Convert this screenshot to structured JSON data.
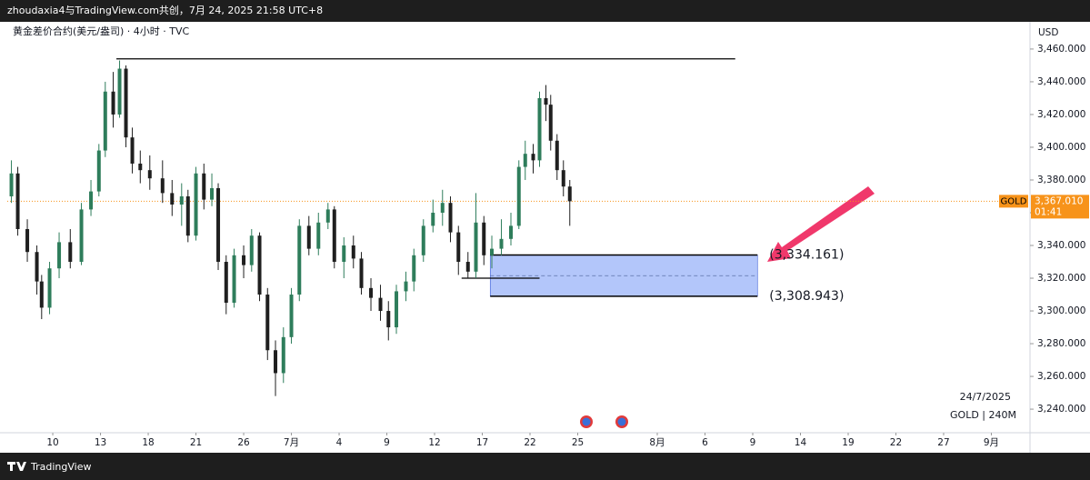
{
  "header": {
    "text": "zhoudaxia4与TradingView.com共创，7月 24, 2025 21:58 UTC+8"
  },
  "chart_data": {
    "type": "candlestick",
    "title": "黄金差价合约(美元/盎司) · 4小时 · TVC",
    "currency": "USD",
    "up_color": "#2e7d5b",
    "down_color": "#1f1f1f",
    "x": [
      -2.6,
      -2.2,
      -1.6,
      -1.0,
      -0.7,
      -0.2,
      0.4,
      1.1,
      1.8,
      2.4,
      2.9,
      3.3,
      3.8,
      4.2,
      4.6,
      5.0,
      5.5,
      6.1,
      6.9,
      7.5,
      8.1,
      8.5,
      9.0,
      9.5,
      10.0,
      10.4,
      10.9,
      11.4,
      12.0,
      12.5,
      13.0,
      13.5,
      14.0,
      14.5,
      15.0,
      15.5,
      16.1,
      16.7,
      17.3,
      17.7,
      18.3,
      18.9,
      19.4,
      20.0,
      20.6,
      21.1,
      21.6,
      22.2,
      22.7,
      23.3,
      23.9,
      24.5,
      25.0,
      25.5,
      26.1,
      26.6,
      27.1,
      27.6,
      28.2,
      28.8,
      29.3,
      29.7,
      30.2,
      30.6,
      31.0,
      31.3,
      31.7,
      32.1,
      32.5
    ],
    "open": [
      3370,
      3384,
      3350,
      3336,
      3318,
      3302,
      3326,
      3342,
      3330,
      3362,
      3373,
      3398,
      3434,
      3420,
      3448,
      3406,
      3390,
      3386,
      3381,
      3372,
      3365,
      3370,
      3346,
      3384,
      3368,
      3375,
      3330,
      3305,
      3334,
      3328,
      3346,
      3310,
      3276,
      3262,
      3284,
      3310,
      3352,
      3338,
      3354,
      3362,
      3330,
      3340,
      3332,
      3314,
      3308,
      3300,
      3290,
      3312,
      3318,
      3334,
      3352,
      3360,
      3366,
      3348,
      3330,
      3324,
      3354,
      3334,
      3338,
      3344,
      3352,
      3388,
      3396,
      3392,
      3430,
      3426,
      3404,
      3386,
      3376
    ],
    "high": [
      3392,
      3388,
      3356,
      3340,
      3322,
      3330,
      3348,
      3350,
      3366,
      3380,
      3402,
      3440,
      3446,
      3453,
      3450,
      3412,
      3398,
      3395,
      3392,
      3380,
      3378,
      3374,
      3388,
      3390,
      3384,
      3378,
      3334,
      3338,
      3340,
      3350,
      3348,
      3314,
      3282,
      3290,
      3314,
      3356,
      3358,
      3360,
      3366,
      3364,
      3345,
      3346,
      3336,
      3320,
      3316,
      3306,
      3316,
      3324,
      3338,
      3356,
      3368,
      3374,
      3370,
      3352,
      3336,
      3372,
      3358,
      3346,
      3356,
      3360,
      3392,
      3404,
      3402,
      3434,
      3438,
      3432,
      3408,
      3392,
      3380
    ],
    "low": [
      3366,
      3346,
      3330,
      3310,
      3295,
      3298,
      3320,
      3326,
      3328,
      3358,
      3370,
      3394,
      3412,
      3418,
      3400,
      3384,
      3378,
      3374,
      3366,
      3358,
      3352,
      3342,
      3343,
      3362,
      3364,
      3325,
      3298,
      3302,
      3320,
      3324,
      3306,
      3270,
      3248,
      3256,
      3280,
      3306,
      3334,
      3334,
      3350,
      3326,
      3320,
      3326,
      3310,
      3300,
      3294,
      3282,
      3286,
      3306,
      3312,
      3330,
      3348,
      3352,
      3342,
      3322,
      3320,
      3320,
      3328,
      3326,
      3334,
      3340,
      3350,
      3380,
      3384,
      3388,
      3416,
      3398,
      3380,
      3370,
      3352
    ],
    "close": [
      3384,
      3350,
      3336,
      3318,
      3302,
      3326,
      3342,
      3330,
      3362,
      3373,
      3398,
      3434,
      3420,
      3448,
      3406,
      3390,
      3386,
      3381,
      3372,
      3365,
      3370,
      3346,
      3384,
      3368,
      3375,
      3330,
      3305,
      3334,
      3328,
      3346,
      3310,
      3276,
      3262,
      3284,
      3310,
      3352,
      3338,
      3354,
      3362,
      3330,
      3340,
      3332,
      3314,
      3308,
      3300,
      3290,
      3312,
      3318,
      3334,
      3352,
      3360,
      3366,
      3348,
      3330,
      3324,
      3354,
      3334,
      3338,
      3344,
      3352,
      3388,
      3396,
      3392,
      3430,
      3426,
      3404,
      3386,
      3376,
      3367.01
    ],
    "xlim": [
      -2.86,
      61.43
    ],
    "xticks": [
      {
        "value": 0,
        "label": "10"
      },
      {
        "value": 3,
        "label": "13"
      },
      {
        "value": 6,
        "label": "18"
      },
      {
        "value": 9,
        "label": "21"
      },
      {
        "value": 12,
        "label": "26"
      },
      {
        "value": 15,
        "label": "7月"
      },
      {
        "value": 18,
        "label": "4"
      },
      {
        "value": 21,
        "label": "9"
      },
      {
        "value": 24,
        "label": "12"
      },
      {
        "value": 27,
        "label": "17"
      },
      {
        "value": 30,
        "label": "22"
      },
      {
        "value": 33,
        "label": "25"
      },
      {
        "value": 38,
        "label": "8月"
      },
      {
        "value": 41,
        "label": "6"
      },
      {
        "value": 44,
        "label": "9"
      },
      {
        "value": 47,
        "label": "14"
      },
      {
        "value": 50,
        "label": "19"
      },
      {
        "value": 53,
        "label": "22"
      },
      {
        "value": 56,
        "label": "27"
      },
      {
        "value": 59,
        "label": "9月"
      }
    ],
    "ylim": [
      3225.6,
      3474.4
    ],
    "yticks": [
      {
        "value": 3240,
        "label": "3,240.000"
      },
      {
        "value": 3260,
        "label": "3,260.000"
      },
      {
        "value": 3280,
        "label": "3,280.000"
      },
      {
        "value": 3300,
        "label": "3,300.000"
      },
      {
        "value": 3320,
        "label": "3,320.000"
      },
      {
        "value": 3340,
        "label": "3,340.000"
      },
      {
        "value": 3360,
        "label": "3,360.000"
      },
      {
        "value": 3380,
        "label": "3,380.000"
      },
      {
        "value": 3400,
        "label": "3,400.000"
      },
      {
        "value": 3420,
        "label": "3,420.000"
      },
      {
        "value": 3440,
        "label": "3,440.000"
      },
      {
        "value": 3460,
        "label": "3,460.000"
      }
    ],
    "last_price": {
      "value": 3367.01,
      "label": "3,367.010",
      "symbol": "GOLD",
      "countdown": "01:41",
      "color": "#f7931a"
    },
    "levels": [
      {
        "value": 3454,
        "x": [
          4.0,
          42.9
        ]
      },
      {
        "value": 3320,
        "x": [
          25.7,
          30.6
        ]
      }
    ],
    "zone": {
      "top": 3334.161,
      "bottom": 3308.943,
      "x": [
        27.5,
        44.3
      ],
      "top_label": "(3,334.161)",
      "bottom_label": "(3,308.943)",
      "color": "#b3c6fa"
    },
    "footnote_date": "24/7/2025",
    "footnote_symbol": "GOLD | 240M"
  },
  "footer": {
    "brand": "TradingView"
  }
}
